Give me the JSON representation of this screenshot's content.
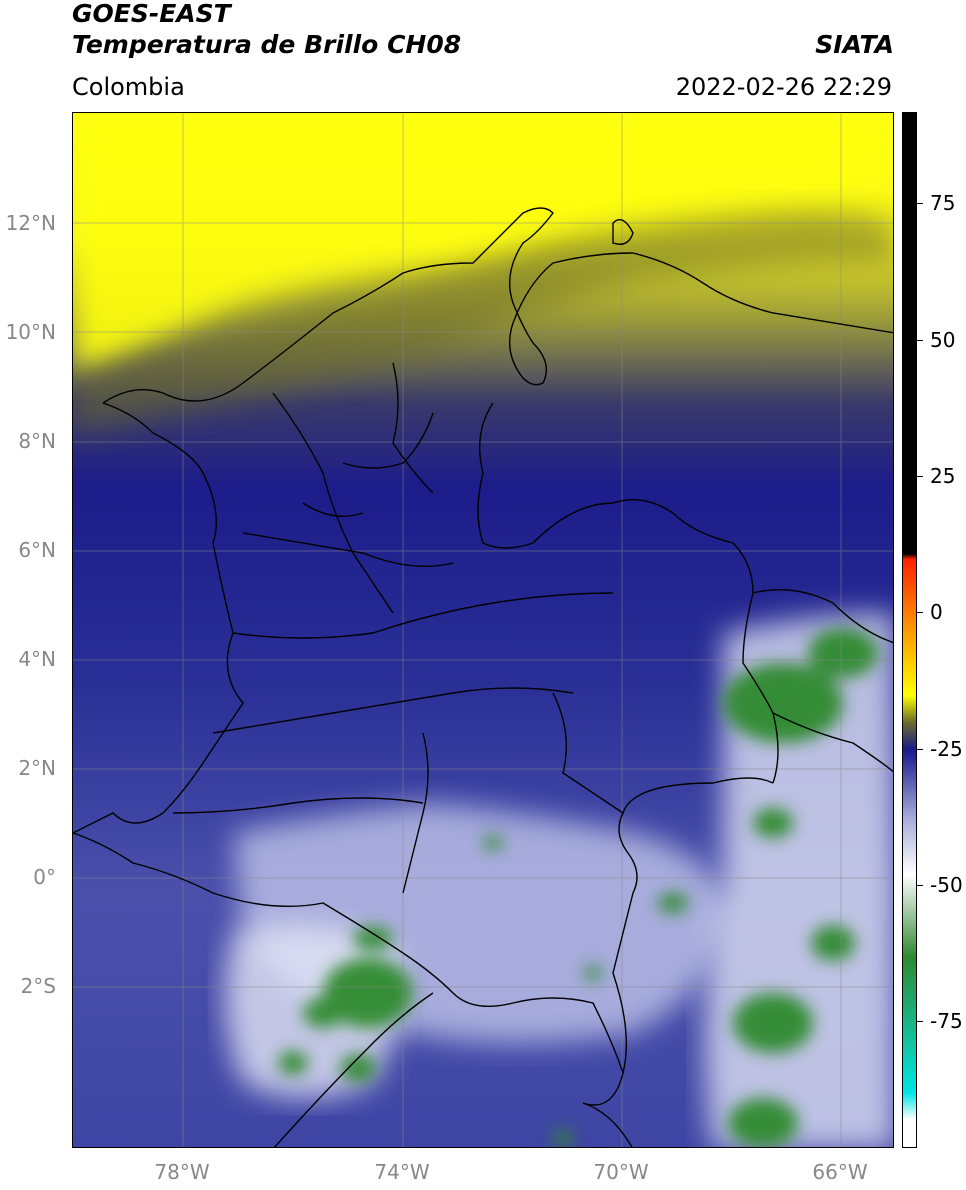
{
  "header": {
    "title_line1": "GOES-EAST",
    "title_line2": "Temperatura de Brillo CH08",
    "source": "SIATA",
    "region": "Colombia",
    "timestamp": "2022-02-26 22:29"
  },
  "map": {
    "lat_ticks": [
      {
        "value": 12,
        "label": "12°N"
      },
      {
        "value": 10,
        "label": "10°N"
      },
      {
        "value": 8,
        "label": "8°N"
      },
      {
        "value": 6,
        "label": "6°N"
      },
      {
        "value": 4,
        "label": "4°N"
      },
      {
        "value": 2,
        "label": "2°N"
      },
      {
        "value": 0,
        "label": "0°"
      },
      {
        "value": -2,
        "label": "2°S"
      }
    ],
    "lon_ticks": [
      {
        "value": -78,
        "label": "78°W"
      },
      {
        "value": -74,
        "label": "74°W"
      },
      {
        "value": -70,
        "label": "70°W"
      },
      {
        "value": -66,
        "label": "66°W"
      }
    ],
    "lon_range": [
      -80,
      -65
    ],
    "lat_range": [
      -4.7,
      14.0
    ],
    "grid": true
  },
  "colorbar": {
    "ticks": [
      {
        "value": 75,
        "label": "75"
      },
      {
        "value": 50,
        "label": "50"
      },
      {
        "value": 25,
        "label": "25"
      },
      {
        "value": 0,
        "label": "0"
      },
      {
        "value": -25,
        "label": "-25"
      },
      {
        "value": -50,
        "label": "-50"
      },
      {
        "value": -75,
        "label": "-75"
      }
    ],
    "range": [
      -100,
      90
    ],
    "colors": {
      "black": "#000000",
      "red": "#ff2200",
      "orange": "#ff9900",
      "yellow": "#ffff00",
      "olive": "#6b6b2a",
      "navy": "#1a1a8c",
      "lavender": "#aab0dd",
      "white": "#ffffff",
      "green": "#2f8a2f",
      "cyan": "#00e5e5"
    }
  }
}
